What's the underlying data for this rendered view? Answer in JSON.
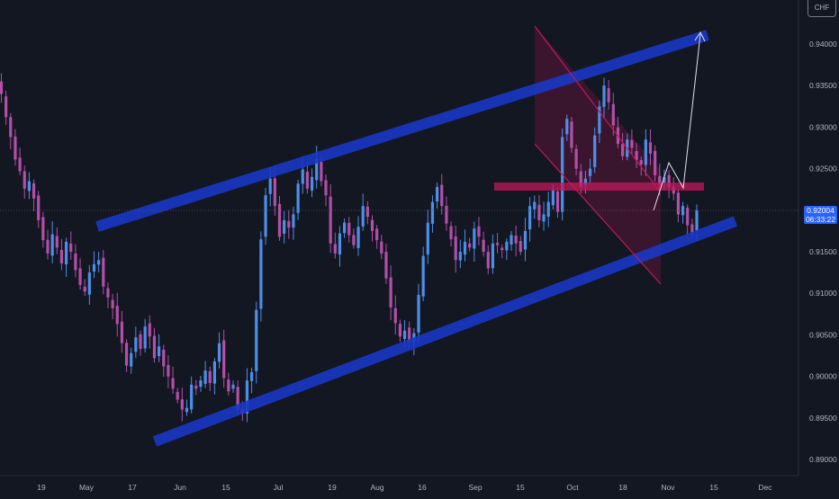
{
  "axis": {
    "currency": "CHF",
    "price_ticks": [
      "0.94000",
      "0.93500",
      "0.93000",
      "0.92500",
      "0.92000",
      "0.91500",
      "0.91000",
      "0.90500",
      "0.90000",
      "0.89500",
      "0.89000"
    ],
    "time_ticks": [
      "19",
      "May",
      "17",
      "Jun",
      "15",
      "Jul",
      "19",
      "Aug",
      "16",
      "Sep",
      "15",
      "Oct",
      "18",
      "Nov",
      "15",
      "Dec"
    ]
  },
  "last_price": {
    "value": "0.92004",
    "countdown": "06:33:22"
  },
  "colors": {
    "background": "#131722",
    "bull": "#4c8fe8",
    "bear": "#b24fa8",
    "channel": "#1a37c4",
    "flag": "#c2185b",
    "axis_text": "#b2b5be",
    "last_price_badge": "#2962ff"
  },
  "chart_data": {
    "type": "candlestick",
    "instrument_quote_currency": "CHF",
    "timeframe": "daily",
    "y_axis": {
      "position": "right",
      "range": [
        0.8884,
        0.9455
      ]
    },
    "x_axis_labels": [
      "19",
      "May",
      "17",
      "Jun",
      "15",
      "Jul",
      "19",
      "Aug",
      "16",
      "Sep",
      "15",
      "Oct",
      "18",
      "Nov",
      "15",
      "Dec"
    ],
    "grid": false,
    "last_price": 0.92004,
    "close_series": [
      0.934,
      0.9312,
      0.9288,
      0.9261,
      0.9247,
      0.9226,
      0.9235,
      0.9214,
      0.9188,
      0.9164,
      0.9148,
      0.9171,
      0.9155,
      0.9136,
      0.9162,
      0.915,
      0.9128,
      0.911,
      0.9102,
      0.9125,
      0.9135,
      0.914,
      0.9108,
      0.9095,
      0.9082,
      0.9063,
      0.904,
      0.9013,
      0.9028,
      0.9047,
      0.9033,
      0.906,
      0.9048,
      0.9022,
      0.9036,
      0.9012,
      0.9,
      0.8985,
      0.8972,
      0.896,
      0.8962,
      0.899,
      0.8985,
      0.8995,
      0.9007,
      0.8992,
      0.9018,
      0.904,
      0.8998,
      0.8982,
      0.899,
      0.896,
      0.8955,
      0.8995,
      0.9005,
      0.908,
      0.9165,
      0.9218,
      0.9238,
      0.9205,
      0.9168,
      0.9188,
      0.9179,
      0.9195,
      0.9232,
      0.9249,
      0.9226,
      0.924,
      0.9262,
      0.9235,
      0.9218,
      0.916,
      0.9148,
      0.9172,
      0.9185,
      0.917,
      0.9158,
      0.918,
      0.9205,
      0.9192,
      0.9175,
      0.9164,
      0.9148,
      0.9118,
      0.9083,
      0.9064,
      0.9048,
      0.9055,
      0.9042,
      0.9052,
      0.9098,
      0.9145,
      0.9185,
      0.921,
      0.9228,
      0.9205,
      0.9184,
      0.9165,
      0.914,
      0.915,
      0.9162,
      0.9155,
      0.9178,
      0.9168,
      0.915,
      0.913,
      0.916,
      0.9158,
      0.9152,
      0.9162,
      0.917,
      0.916,
      0.915,
      0.9175,
      0.9205,
      0.921,
      0.9188,
      0.9195,
      0.921,
      0.9224,
      0.9198,
      0.9288,
      0.931,
      0.9275,
      0.925,
      0.9228,
      0.9238,
      0.925,
      0.929,
      0.9325,
      0.935,
      0.933,
      0.9302,
      0.928,
      0.9265,
      0.9285,
      0.9275,
      0.926,
      0.9255,
      0.9285,
      0.9268,
      0.9242,
      0.923,
      0.924,
      0.9228,
      0.922,
      0.9195,
      0.9205,
      0.9182,
      0.9172,
      0.92
    ],
    "annotations": [
      {
        "type": "ascending_channel",
        "upper_line": "0.9210 (mid-Apr) to 0.9410 (early Nov)",
        "lower_line": "0.8943 (mid-May) to 0.9193 (mid-Nov)"
      },
      {
        "type": "descending_flag",
        "from": "0.9410 (late Sep)",
        "to": "0.9114 (late Oct)"
      },
      {
        "type": "horizontal_zone",
        "range": [
          0.9224,
          0.9233
        ]
      },
      {
        "type": "projection_path",
        "points": [
          0.9201,
          0.9254,
          0.9224,
          0.941
        ]
      }
    ]
  }
}
